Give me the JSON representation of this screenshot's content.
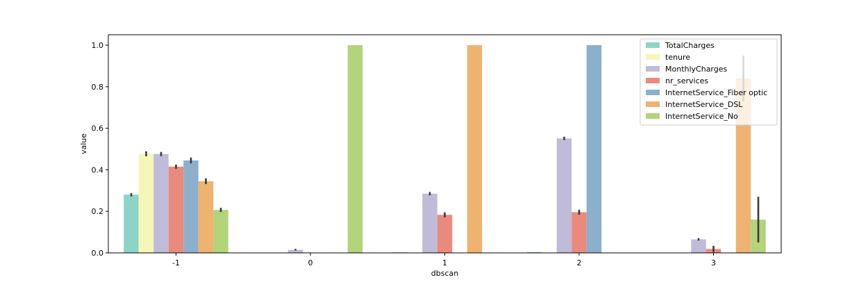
{
  "chart_data": {
    "type": "bar",
    "xlabel": "dbscan",
    "ylabel": "value",
    "categories": [
      "-1",
      "0",
      "1",
      "2",
      "3"
    ],
    "ylim": [
      0,
      1.0
    ],
    "yticks": [
      "0.0",
      "0.2",
      "0.4",
      "0.6",
      "0.8",
      "1.0"
    ],
    "legend_position": "top-right",
    "grid": false,
    "series": [
      {
        "name": "TotalCharges",
        "color": "#8dd3c7",
        "values": [
          0.28,
          0.0,
          0.003,
          0.004,
          0.0
        ],
        "err": [
          0.008,
          0.0,
          0.0,
          0.0,
          0.0
        ]
      },
      {
        "name": "tenure",
        "color": "#f6f6b8",
        "values": [
          0.477,
          0.0,
          0.0,
          0.0,
          0.0
        ],
        "err": [
          0.012,
          0.0,
          0.0,
          0.0,
          0.0
        ]
      },
      {
        "name": "MonthlyCharges",
        "color": "#c0bbd8",
        "values": [
          0.476,
          0.015,
          0.285,
          0.551,
          0.065
        ],
        "err": [
          0.01,
          0.004,
          0.008,
          0.008,
          0.006
        ]
      },
      {
        "name": "nr_services",
        "color": "#e98a7d",
        "values": [
          0.415,
          0.0,
          0.183,
          0.196,
          0.019
        ],
        "err": [
          0.01,
          0.0,
          0.012,
          0.012,
          0.015
        ]
      },
      {
        "name": "InternetService_Fiber optic",
        "color": "#8cb0cb",
        "values": [
          0.445,
          0.0,
          0.0,
          1.0,
          0.0
        ],
        "err": [
          0.014,
          0.0,
          0.0,
          0.0,
          0.0
        ]
      },
      {
        "name": "InternetService_DSL",
        "color": "#eeb271",
        "values": [
          0.345,
          0.0,
          1.0,
          0.0,
          0.84
        ],
        "err": [
          0.014,
          0.0,
          0.0,
          0.0,
          0.11
        ]
      },
      {
        "name": "InternetService_No",
        "color": "#b2d47b",
        "values": [
          0.207,
          1.0,
          0.0,
          0.0,
          0.16
        ],
        "err": [
          0.01,
          0.0,
          0.0,
          0.0,
          0.11
        ]
      }
    ]
  }
}
